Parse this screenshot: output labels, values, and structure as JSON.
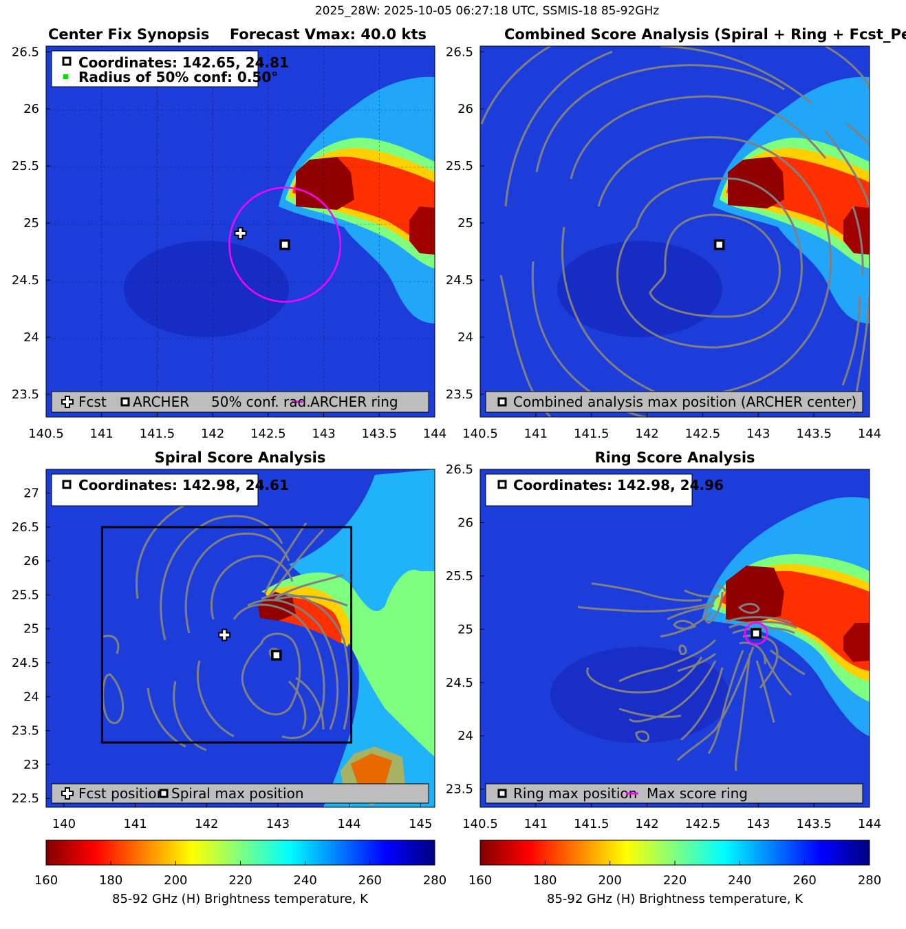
{
  "figure_title": "2025_28W: 2025-10-05 06:27:18 UTC, SSMIS-18 85-92GHz",
  "colors": {
    "contour": "#808080",
    "ring": "#ff00ff",
    "conf_marker": "#00dd00",
    "legend_bg": "#bdbdbd"
  },
  "colorbars": [
    {
      "ticks": [
        "160",
        "180",
        "200",
        "220",
        "240",
        "260",
        "280"
      ],
      "label": "85-92 GHz (H) Brightness temperature, K",
      "colormap": "jet-reversed",
      "range": [
        160,
        280
      ]
    },
    {
      "ticks": [
        "160",
        "180",
        "200",
        "220",
        "240",
        "260",
        "280"
      ],
      "label": "85-92 GHz (H) Brightness temperature, K",
      "colormap": "jet-reversed",
      "range": [
        160,
        280
      ]
    }
  ],
  "chart_data": [
    {
      "type": "heatmap",
      "title_left": "Center Fix Synopsis",
      "title_right": "Forecast Vmax: 40.0 kts",
      "xlim": [
        140.5,
        144
      ],
      "ylim": [
        23.3,
        26.55
      ],
      "xticks": [
        "140.5",
        "141",
        "141.5",
        "142",
        "142.5",
        "143",
        "143.5",
        "144"
      ],
      "yticks": [
        "23.5",
        "24",
        "24.5",
        "25",
        "25.5",
        "26",
        "26.5"
      ],
      "grid": true,
      "info": [
        "Coordinates: 142.65, 24.81",
        "Radius of 50% conf: 0.50°"
      ],
      "legend": [
        "Fcst",
        "ARCHER",
        "50% conf. rad.",
        "ARCHER ring"
      ],
      "markers": {
        "fcst": [
          142.25,
          24.91
        ],
        "archer": [
          142.65,
          24.81
        ]
      },
      "ring": {
        "center": [
          142.65,
          24.81
        ],
        "radius_deg": 0.5
      }
    },
    {
      "type": "heatmap",
      "title": "Combined Score Analysis (Spiral + Ring + Fcst_Pe",
      "xlim": [
        140.5,
        144
      ],
      "ylim": [
        23.3,
        26.55
      ],
      "xticks": [
        "140.5",
        "141",
        "141.5",
        "142",
        "142.5",
        "143",
        "143.5",
        "144"
      ],
      "yticks": [
        "23.5",
        "24",
        "24.5",
        "25",
        "25.5",
        "26",
        "26.5"
      ],
      "legend": [
        "Combined analysis max position (ARCHER center)"
      ],
      "markers": {
        "max": [
          142.65,
          24.81
        ]
      }
    },
    {
      "type": "heatmap",
      "title": "Spiral Score Analysis",
      "xlim": [
        139.75,
        145.2
      ],
      "ylim": [
        22.37,
        27.35
      ],
      "xticks": [
        "140",
        "141",
        "142",
        "143",
        "144",
        "145"
      ],
      "yticks": [
        "22.5",
        "23",
        "23.5",
        "24",
        "24.5",
        "25",
        "25.5",
        "26",
        "26.5",
        "27"
      ],
      "info": [
        "Coordinates: 142.98, 24.61"
      ],
      "legend": [
        "Fcst position",
        "Spiral max position"
      ],
      "markers": {
        "fcst": [
          142.25,
          24.91
        ],
        "max": [
          142.98,
          24.61
        ]
      },
      "box": {
        "x": [
          140.5,
          144
        ],
        "y": [
          23.33,
          26.5
        ]
      }
    },
    {
      "type": "heatmap",
      "title": "Ring Score Analysis",
      "xlim": [
        140.5,
        144
      ],
      "ylim": [
        23.33,
        26.5
      ],
      "xticks": [
        "140.5",
        "141",
        "141.5",
        "142",
        "142.5",
        "143",
        "143.5",
        "144"
      ],
      "yticks": [
        "23.5",
        "24",
        "24.5",
        "25",
        "25.5",
        "26",
        "26.5"
      ],
      "info": [
        "Coordinates: 142.98, 24.96"
      ],
      "legend": [
        "Ring max position",
        "Max score ring"
      ],
      "markers": {
        "max": [
          142.98,
          24.96
        ]
      },
      "ring": {
        "center": [
          142.98,
          24.96
        ],
        "radius_deg": 0.1
      }
    }
  ]
}
